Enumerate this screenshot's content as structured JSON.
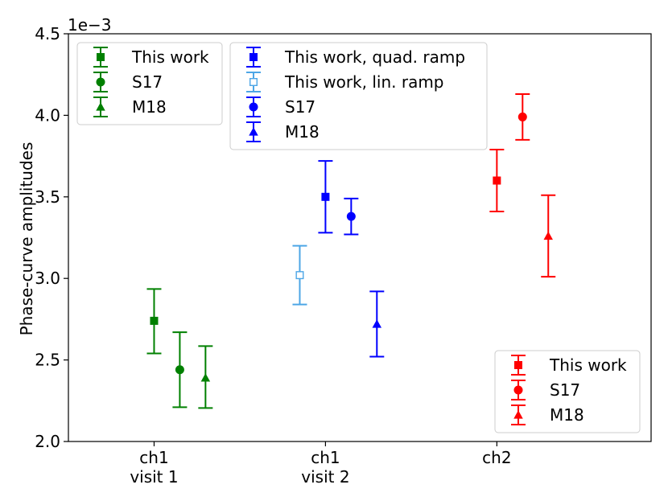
{
  "chart_data": {
    "type": "scatter",
    "title": "",
    "xlabel": "",
    "ylabel": "Phase-curve amplitudes",
    "y_offset_label": "1e−3",
    "ylim": [
      2.0,
      4.5
    ],
    "y_ticks": [
      "2.0",
      "2.5",
      "3.0",
      "3.5",
      "4.0",
      "4.5"
    ],
    "y_tick_values": [
      2.0,
      2.5,
      3.0,
      3.5,
      4.0,
      4.5
    ],
    "xlim": [
      0.5,
      3.9
    ],
    "categories": [
      {
        "lines": [
          "ch1",
          "visit 1"
        ],
        "x": 1
      },
      {
        "lines": [
          "ch1",
          "visit 2"
        ],
        "x": 2
      },
      {
        "lines": [
          "ch2"
        ],
        "x": 3
      }
    ],
    "grid": false,
    "colors": {
      "green": "#008000",
      "blue": "#0000ff",
      "lightblue": "#4da6e6",
      "red": "#ff0000"
    },
    "series": [
      {
        "group": "ch1 visit 1",
        "label": "This work",
        "marker": "square",
        "color": "#008000",
        "x": 1.0,
        "y": 2.74,
        "yerr_lo": 2.54,
        "yerr_hi": 2.935
      },
      {
        "group": "ch1 visit 1",
        "label": "S17",
        "marker": "circle",
        "color": "#008000",
        "x": 1.15,
        "y": 2.44,
        "yerr_lo": 2.21,
        "yerr_hi": 2.67
      },
      {
        "group": "ch1 visit 1",
        "label": "M18",
        "marker": "triangle",
        "color": "#008000",
        "x": 1.3,
        "y": 2.39,
        "yerr_lo": 2.205,
        "yerr_hi": 2.585
      },
      {
        "group": "ch1 visit 2",
        "label": "This work, lin. ramp",
        "marker": "square-open",
        "color": "#4da6e6",
        "x": 1.85,
        "y": 3.02,
        "yerr_lo": 2.84,
        "yerr_hi": 3.2
      },
      {
        "group": "ch1 visit 2",
        "label": "This work, quad. ramp",
        "marker": "square",
        "color": "#0000ff",
        "x": 2.0,
        "y": 3.5,
        "yerr_lo": 3.28,
        "yerr_hi": 3.72
      },
      {
        "group": "ch1 visit 2",
        "label": "S17",
        "marker": "circle",
        "color": "#0000ff",
        "x": 2.15,
        "y": 3.38,
        "yerr_lo": 3.27,
        "yerr_hi": 3.49
      },
      {
        "group": "ch1 visit 2",
        "label": "M18",
        "marker": "triangle",
        "color": "#0000ff",
        "x": 2.3,
        "y": 2.72,
        "yerr_lo": 2.52,
        "yerr_hi": 2.92
      },
      {
        "group": "ch2",
        "label": "This work",
        "marker": "square",
        "color": "#ff0000",
        "x": 3.0,
        "y": 3.6,
        "yerr_lo": 3.41,
        "yerr_hi": 3.79
      },
      {
        "group": "ch2",
        "label": "S17",
        "marker": "circle",
        "color": "#ff0000",
        "x": 3.15,
        "y": 3.99,
        "yerr_lo": 3.85,
        "yerr_hi": 4.13
      },
      {
        "group": "ch2",
        "label": "M18",
        "marker": "triangle",
        "color": "#ff0000",
        "x": 3.3,
        "y": 3.26,
        "yerr_lo": 3.01,
        "yerr_hi": 3.51
      }
    ],
    "legends": [
      {
        "placement": "top-left",
        "entries": [
          {
            "label": "This work",
            "marker": "square",
            "color": "#008000"
          },
          {
            "label": "S17",
            "marker": "circle",
            "color": "#008000"
          },
          {
            "label": "M18",
            "marker": "triangle",
            "color": "#008000"
          }
        ]
      },
      {
        "placement": "top-center",
        "entries": [
          {
            "label": "This work, quad. ramp",
            "marker": "square",
            "color": "#0000ff"
          },
          {
            "label": "This work, lin. ramp",
            "marker": "square-open",
            "color": "#4da6e6"
          },
          {
            "label": "S17",
            "marker": "circle",
            "color": "#0000ff"
          },
          {
            "label": "M18",
            "marker": "triangle",
            "color": "#0000ff"
          }
        ]
      },
      {
        "placement": "lower-right",
        "entries": [
          {
            "label": "This work",
            "marker": "square",
            "color": "#ff0000"
          },
          {
            "label": "S17",
            "marker": "circle",
            "color": "#ff0000"
          },
          {
            "label": "M18",
            "marker": "triangle",
            "color": "#ff0000"
          }
        ]
      }
    ]
  }
}
